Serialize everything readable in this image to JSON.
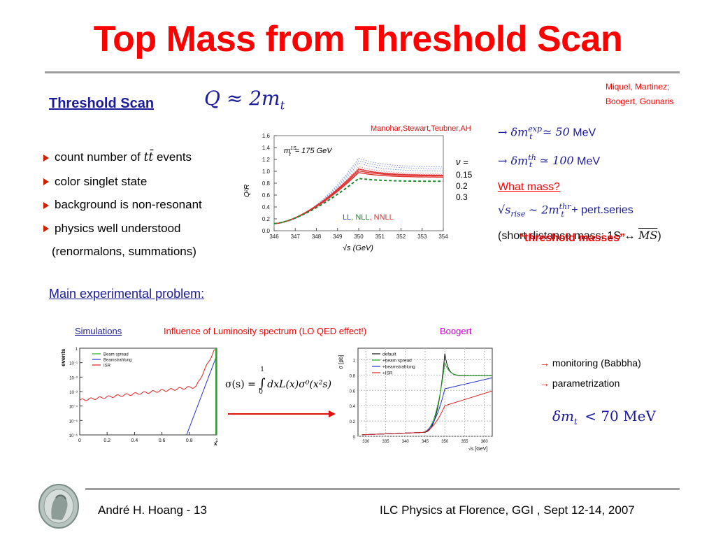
{
  "title": "Top Mass from Threshold Scan",
  "references": {
    "line1": "Miquel, Martinez;",
    "line2": "Boogert,  Gounaris"
  },
  "threshold_scan": {
    "heading": "Threshold Scan",
    "formula": "Q ≈ 2m",
    "formula_sub": "t",
    "bullets": [
      {
        "prefix": "count number of ",
        "math": "tt̄",
        "suffix": " events"
      },
      {
        "prefix": "color singlet state",
        "math": "",
        "suffix": ""
      },
      {
        "prefix": "background is non-resonant",
        "math": "",
        "suffix": ""
      },
      {
        "prefix": "physics well understood",
        "math": "",
        "suffix": ""
      }
    ],
    "note": "(renormalons, summations)"
  },
  "threshold_plot": {
    "authors": "Manohar,Stewart,Teubner,AH",
    "mass_label": "m",
    "mass_sup": "1S",
    "mass_sub": "t",
    "mass_value": "= 175 GeV",
    "y_label": "Q²R",
    "x_label": "√s (GeV)",
    "x_ticks": [
      "346",
      "347",
      "348",
      "349",
      "350",
      "351",
      "352",
      "353",
      "354"
    ],
    "y_ticks": [
      "0.0",
      "0.2",
      "0.4",
      "0.6",
      "0.8",
      "1.0",
      "1.2",
      "1.4",
      "1.6"
    ],
    "legend_ll": "LL",
    "legend_nll": ", NLL",
    "legend_nnll": ", NNLL",
    "nu_label": "ν =",
    "nu_values": [
      "0.15",
      "0.2",
      "0.3"
    ],
    "colors": {
      "ll": "#2a4fd8",
      "nll": "#1a8a2a",
      "nnll": "#e03030"
    }
  },
  "right_panel": {
    "exp_arrow": "→ δm",
    "exp_sup": "exp",
    "exp_sub": "t",
    "exp_value": "≃ 50",
    "exp_unit": "MeV",
    "th_arrow": "→ δm",
    "th_sup": "th",
    "th_sub": "t",
    "th_value": "≃ 100",
    "th_unit": "MeV",
    "what_mass": "What mass?",
    "sqrt_label": "√s",
    "sqrt_sub": "rise",
    "sim_rest": "∼ 2m",
    "thr_sup": "thr",
    "thr_sub": "t",
    "pert": "+ pert.series",
    "short_distance_pre": "(short distance mass: 1S ↔ ",
    "ms_bar": "MS",
    "short_distance_post": ")",
    "threshold_masses": "“threshold masses”"
  },
  "experimental": {
    "heading": "Main experimental problem:",
    "sim_label": "Simulations",
    "influence_label": "Influence of Luminosity spectrum (LO QED effect!)",
    "boogert_label": "Boogert",
    "formula_left": "σ(s) = ",
    "integral_top": "1",
    "integral_bottom": "0",
    "formula_right": "dxL(x)σ⁰(x²s)",
    "monitoring": "monitoring (Babbha)",
    "parametrization": "parametrization",
    "delta_m": "δm",
    "delta_sub": "t",
    "delta_value": "< 70 MeV"
  },
  "lumi_plot": {
    "y_label": "events",
    "x_label": "x",
    "y_ticks": [
      "10⁻⁶",
      "10⁻⁵",
      "10⁻⁴",
      "10⁻³",
      "10⁻²",
      "10⁻¹",
      "1"
    ],
    "x_ticks": [
      "0",
      "0.2",
      "0.4",
      "0.6",
      "0.8",
      "1"
    ],
    "legend": [
      "Beam spread",
      "Beamstrahlung",
      "ISR"
    ],
    "colors": [
      "#22aa22",
      "#2233cc",
      "#dd2222"
    ]
  },
  "xsec_plot": {
    "y_label": "σ [pb]",
    "x_label": "√s [GeV]",
    "y_ticks": [
      "0",
      "0.2",
      "0.4",
      "0.6",
      "0.8",
      "1"
    ],
    "x_ticks": [
      "330",
      "335",
      "340",
      "345",
      "350",
      "355",
      "360"
    ],
    "legend": [
      "default",
      "+beam spread",
      "+beamstrahlung",
      "+ISR"
    ],
    "colors": [
      "#111111",
      "#22aa22",
      "#2233cc",
      "#dd2222"
    ]
  },
  "footer": {
    "left": "André H. Hoang  - 13",
    "right": "ILC Physics at Florence, GGI , Sept 12-14, 2007"
  }
}
